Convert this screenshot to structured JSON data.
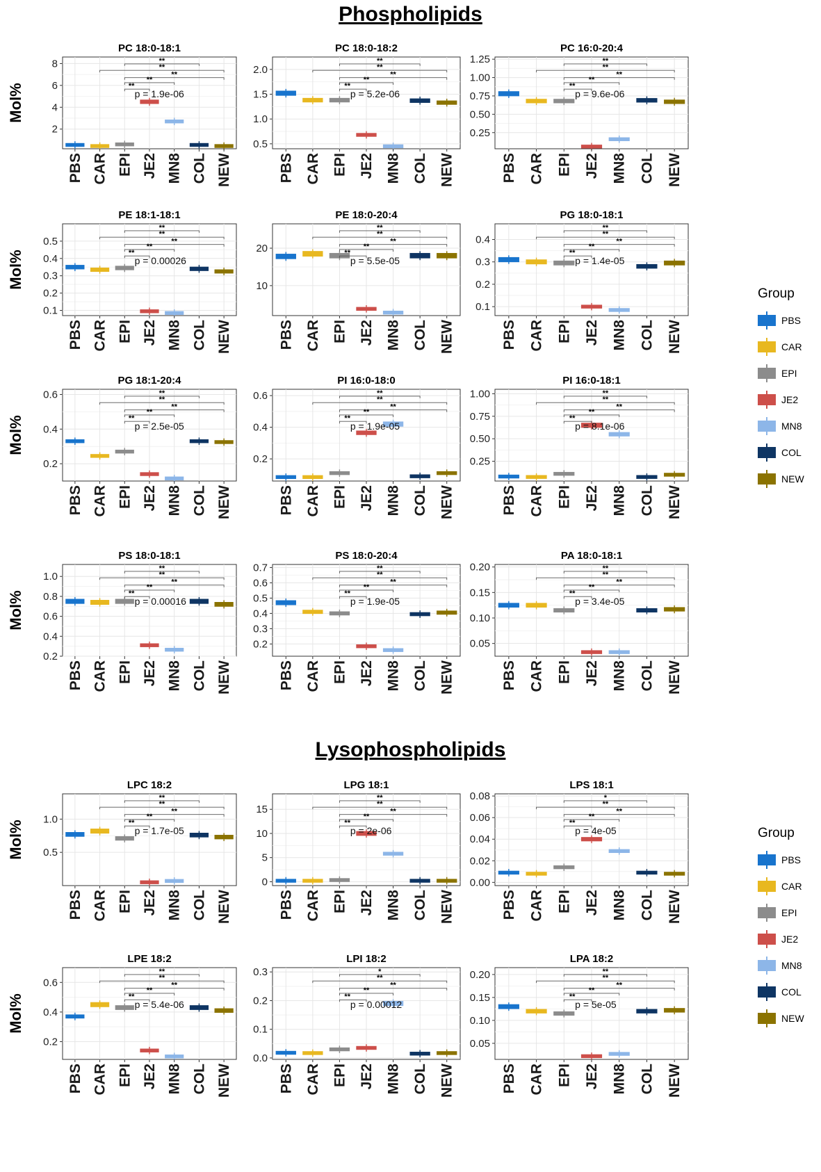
{
  "sections": [
    {
      "title": "Phospholipids"
    },
    {
      "title": "Lysophospholipids"
    }
  ],
  "legend_title": "Group",
  "groups": [
    "PBS",
    "CAR",
    "EPI",
    "JE2",
    "MN8",
    "COL",
    "NEW"
  ],
  "colors": {
    "PBS": "#1874CD",
    "CAR": "#E8B820",
    "EPI": "#8C8C8C",
    "JE2": "#CD4F4A",
    "MN8": "#8DB6E8",
    "COL": "#0E3563",
    "NEW": "#8B7300"
  },
  "ylabel": "Mol%",
  "chart_data": [
    {
      "type": "box",
      "title": "PC 18:0-18:1",
      "ylabel": "Mol%",
      "categories": [
        "PBS",
        "CAR",
        "EPI",
        "JE2",
        "MN8",
        "COL",
        "NEW"
      ],
      "medians": [
        0.55,
        0.45,
        0.6,
        4.5,
        2.7,
        0.55,
        0.45
      ],
      "ylim": [
        0.2,
        8.6
      ],
      "ticks": [
        2,
        4,
        6,
        8
      ],
      "tick_labels": [
        "2",
        "4",
        "6",
        "8"
      ],
      "pvalue": "p = 1.9e-06",
      "sig": [
        "**",
        "**",
        "**",
        "**"
      ]
    },
    {
      "type": "box",
      "title": "PC 18:0-18:2",
      "ylabel": "",
      "categories": [
        "PBS",
        "CAR",
        "EPI",
        "JE2",
        "MN8",
        "COL",
        "NEW"
      ],
      "medians": [
        1.52,
        1.38,
        1.38,
        0.68,
        0.45,
        1.37,
        1.33
      ],
      "ylim": [
        0.4,
        2.25
      ],
      "ticks": [
        0.5,
        1.0,
        1.5,
        2.0
      ],
      "tick_labels": [
        "0.5",
        "1.0",
        "1.5",
        "2.0"
      ],
      "pvalue": "p = 5.2e-06",
      "sig": [
        "**",
        "**",
        "**"
      ]
    },
    {
      "type": "box",
      "title": "PC 16:0-20:4",
      "ylabel": "",
      "categories": [
        "PBS",
        "CAR",
        "EPI",
        "JE2",
        "MN8",
        "COL",
        "NEW"
      ],
      "medians": [
        0.78,
        0.68,
        0.68,
        0.06,
        0.16,
        0.69,
        0.67
      ],
      "ylim": [
        0.03,
        1.28
      ],
      "ticks": [
        0.25,
        0.5,
        0.75,
        1.0,
        1.25
      ],
      "tick_labels": [
        "0.25",
        "0.50",
        "0.75",
        "1.00",
        "1.25"
      ],
      "pvalue": "p = 9.6e-06",
      "sig": [
        "**",
        "**",
        "**"
      ]
    },
    {
      "type": "box",
      "title": "PE 18:1-18:1",
      "ylabel": "Mol%",
      "categories": [
        "PBS",
        "CAR",
        "EPI",
        "JE2",
        "MN8",
        "COL",
        "NEW"
      ],
      "medians": [
        0.35,
        0.335,
        0.345,
        0.095,
        0.085,
        0.34,
        0.325
      ],
      "ylim": [
        0.07,
        0.6
      ],
      "ticks": [
        0.1,
        0.2,
        0.3,
        0.4,
        0.5
      ],
      "tick_labels": [
        "0.1",
        "0.2",
        "0.3",
        "0.4",
        "0.5"
      ],
      "pvalue": "p = 0.00026",
      "sig": [
        "**",
        "**",
        "**"
      ]
    },
    {
      "type": "box",
      "title": "PE 18:0-20:4",
      "ylabel": "",
      "categories": [
        "PBS",
        "CAR",
        "EPI",
        "JE2",
        "MN8",
        "COL",
        "NEW"
      ],
      "medians": [
        17.8,
        18.5,
        18.0,
        3.8,
        2.8,
        18.0,
        18.0
      ],
      "ylim": [
        2.0,
        26.5
      ],
      "ticks": [
        10,
        20
      ],
      "tick_labels": [
        "10",
        "20"
      ],
      "pvalue": "p = 5.5e-05",
      "sig": [
        "**",
        "**",
        "**"
      ]
    },
    {
      "type": "box",
      "title": "PG 18:0-18:1",
      "ylabel": "",
      "categories": [
        "PBS",
        "CAR",
        "EPI",
        "JE2",
        "MN8",
        "COL",
        "NEW"
      ],
      "medians": [
        0.31,
        0.3,
        0.295,
        0.1,
        0.085,
        0.28,
        0.295
      ],
      "ylim": [
        0.06,
        0.47
      ],
      "ticks": [
        0.1,
        0.2,
        0.3,
        0.4
      ],
      "tick_labels": [
        "0.1",
        "0.2",
        "0.3",
        "0.4"
      ],
      "pvalue": "p = 1.4e-05",
      "sig": [
        "**",
        "**",
        "**"
      ]
    },
    {
      "type": "box",
      "title": "PG 18:1-20:4",
      "ylabel": "Mol%",
      "categories": [
        "PBS",
        "CAR",
        "EPI",
        "JE2",
        "MN8",
        "COL",
        "NEW"
      ],
      "medians": [
        0.33,
        0.245,
        0.27,
        0.14,
        0.115,
        0.33,
        0.325
      ],
      "ylim": [
        0.1,
        0.63
      ],
      "ticks": [
        0.2,
        0.4,
        0.6
      ],
      "tick_labels": [
        "0.2",
        "0.4",
        "0.6"
      ],
      "pvalue": "p = 2.5e-05",
      "sig": [
        "**",
        "**",
        "**"
      ]
    },
    {
      "type": "box",
      "title": "PI 16:0-18:0",
      "ylabel": "",
      "categories": [
        "PBS",
        "CAR",
        "EPI",
        "JE2",
        "MN8",
        "COL",
        "NEW"
      ],
      "medians": [
        0.085,
        0.085,
        0.11,
        0.365,
        0.42,
        0.09,
        0.11
      ],
      "ylim": [
        0.06,
        0.64
      ],
      "ticks": [
        0.2,
        0.4,
        0.6
      ],
      "tick_labels": [
        "0.2",
        "0.4",
        "0.6"
      ],
      "pvalue": "p = 1.9e-05",
      "sig": [
        "**",
        "**",
        "**"
      ]
    },
    {
      "type": "box",
      "title": "PI 16:0-18:1",
      "ylabel": "",
      "categories": [
        "PBS",
        "CAR",
        "EPI",
        "JE2",
        "MN8",
        "COL",
        "NEW"
      ],
      "medians": [
        0.08,
        0.075,
        0.11,
        0.65,
        0.55,
        0.075,
        0.1
      ],
      "ylim": [
        0.03,
        1.05
      ],
      "ticks": [
        0.25,
        0.5,
        0.75,
        1.0
      ],
      "tick_labels": [
        "0.25",
        "0.50",
        "0.75",
        "1.00"
      ],
      "pvalue": "p = 8.1e-06",
      "sig": [
        "**",
        "**",
        "**"
      ]
    },
    {
      "type": "box",
      "title": "PS 18:0-18:1",
      "ylabel": "Mol%",
      "categories": [
        "PBS",
        "CAR",
        "EPI",
        "JE2",
        "MN8",
        "COL",
        "NEW"
      ],
      "medians": [
        0.75,
        0.74,
        0.75,
        0.31,
        0.265,
        0.75,
        0.72
      ],
      "ylim": [
        0.2,
        1.12
      ],
      "ticks": [
        0.2,
        0.4,
        0.6,
        0.8,
        1.0
      ],
      "tick_labels": [
        "0.2",
        "0.4",
        "0.6",
        "0.8",
        "1.0"
      ],
      "pvalue": "p = 0.00016",
      "sig": [
        "**",
        "**",
        "**"
      ]
    },
    {
      "type": "box",
      "title": "PS 18:0-20:4",
      "ylabel": "",
      "categories": [
        "PBS",
        "CAR",
        "EPI",
        "JE2",
        "MN8",
        "COL",
        "NEW"
      ],
      "medians": [
        0.47,
        0.41,
        0.4,
        0.185,
        0.16,
        0.395,
        0.405
      ],
      "ylim": [
        0.12,
        0.72
      ],
      "ticks": [
        0.2,
        0.3,
        0.4,
        0.5,
        0.6,
        0.7
      ],
      "tick_labels": [
        "0.2",
        "0.3",
        "0.4",
        "0.5",
        "0.6",
        "0.7"
      ],
      "pvalue": "p = 1.9e-05",
      "sig": [
        "**",
        "**",
        "**"
      ]
    },
    {
      "type": "box",
      "title": "PA 18:0-18:1",
      "ylabel": "",
      "categories": [
        "PBS",
        "CAR",
        "EPI",
        "JE2",
        "MN8",
        "COL",
        "NEW"
      ],
      "medians": [
        0.125,
        0.125,
        0.115,
        0.033,
        0.033,
        0.115,
        0.117
      ],
      "ylim": [
        0.025,
        0.205
      ],
      "ticks": [
        0.05,
        0.1,
        0.15,
        0.2
      ],
      "tick_labels": [
        "0.05",
        "0.10",
        "0.15",
        "0.20"
      ],
      "pvalue": "p = 3.4e-05",
      "sig": [
        "**",
        "**",
        "**"
      ]
    },
    {
      "type": "box",
      "title": "LPC 18:2",
      "ylabel": "Mol%",
      "categories": [
        "PBS",
        "CAR",
        "EPI",
        "JE2",
        "MN8",
        "COL",
        "NEW"
      ],
      "medians": [
        0.77,
        0.82,
        0.71,
        0.05,
        0.07,
        0.76,
        0.73
      ],
      "ylim": [
        0.0,
        1.38
      ],
      "ticks": [
        0.5,
        1.0
      ],
      "tick_labels": [
        "0.5",
        "1.0"
      ],
      "pvalue": "p = 1.7e-05",
      "sig": [
        "**",
        "**",
        "**"
      ]
    },
    {
      "type": "box",
      "title": "LPG 18:1",
      "ylabel": "",
      "categories": [
        "PBS",
        "CAR",
        "EPI",
        "JE2",
        "MN8",
        "COL",
        "NEW"
      ],
      "medians": [
        0.2,
        0.2,
        0.35,
        10.0,
        5.8,
        0.2,
        0.2
      ],
      "ylim": [
        -0.8,
        18.2
      ],
      "ticks": [
        0,
        5,
        10,
        15
      ],
      "tick_labels": [
        "0",
        "5",
        "10",
        "15"
      ],
      "pvalue": "p = 2e-06",
      "sig": [
        "**",
        "**",
        "**"
      ]
    },
    {
      "type": "box",
      "title": "LPS 18:1",
      "ylabel": "",
      "categories": [
        "PBS",
        "CAR",
        "EPI",
        "JE2",
        "MN8",
        "COL",
        "NEW"
      ],
      "medians": [
        0.009,
        0.008,
        0.014,
        0.04,
        0.029,
        0.009,
        0.008
      ],
      "ylim": [
        -0.003,
        0.082
      ],
      "ticks": [
        0.0,
        0.02,
        0.04,
        0.06,
        0.08
      ],
      "tick_labels": [
        "0.00",
        "0.02",
        "0.04",
        "0.06",
        "0.08"
      ],
      "pvalue": "p = 4e-05",
      "sig": [
        "**",
        "**",
        "*"
      ]
    },
    {
      "type": "box",
      "title": "LPE 18:2",
      "ylabel": "Mol%",
      "categories": [
        "PBS",
        "CAR",
        "EPI",
        "JE2",
        "MN8",
        "COL",
        "NEW"
      ],
      "medians": [
        0.37,
        0.45,
        0.43,
        0.14,
        0.1,
        0.43,
        0.41
      ],
      "ylim": [
        0.08,
        0.7
      ],
      "ticks": [
        0.2,
        0.4,
        0.6
      ],
      "tick_labels": [
        "0.2",
        "0.4",
        "0.6"
      ],
      "pvalue": "p = 5.4e-06",
      "sig": [
        "**",
        "**",
        "**"
      ]
    },
    {
      "type": "box",
      "title": "LPI 18:2",
      "ylabel": "",
      "categories": [
        "PBS",
        "CAR",
        "EPI",
        "JE2",
        "MN8",
        "COL",
        "NEW"
      ],
      "medians": [
        0.018,
        0.017,
        0.03,
        0.035,
        0.19,
        0.015,
        0.017
      ],
      "ylim": [
        -0.005,
        0.315
      ],
      "ticks": [
        0.0,
        0.1,
        0.2,
        0.3
      ],
      "tick_labels": [
        "0.0",
        "0.1",
        "0.2",
        "0.3"
      ],
      "pvalue": "p = 0.00012",
      "sig": [
        "**",
        "**",
        "*"
      ]
    },
    {
      "type": "box",
      "title": "LPA 18:2",
      "ylabel": "",
      "categories": [
        "PBS",
        "CAR",
        "EPI",
        "JE2",
        "MN8",
        "COL",
        "NEW"
      ],
      "medians": [
        0.13,
        0.12,
        0.115,
        0.022,
        0.027,
        0.12,
        0.122
      ],
      "ylim": [
        0.015,
        0.215
      ],
      "ticks": [
        0.05,
        0.1,
        0.15,
        0.2
      ],
      "tick_labels": [
        "0.05",
        "0.10",
        "0.15",
        "0.20"
      ],
      "pvalue": "p = 5e-05",
      "sig": [
        "**",
        "**",
        "**"
      ]
    }
  ]
}
